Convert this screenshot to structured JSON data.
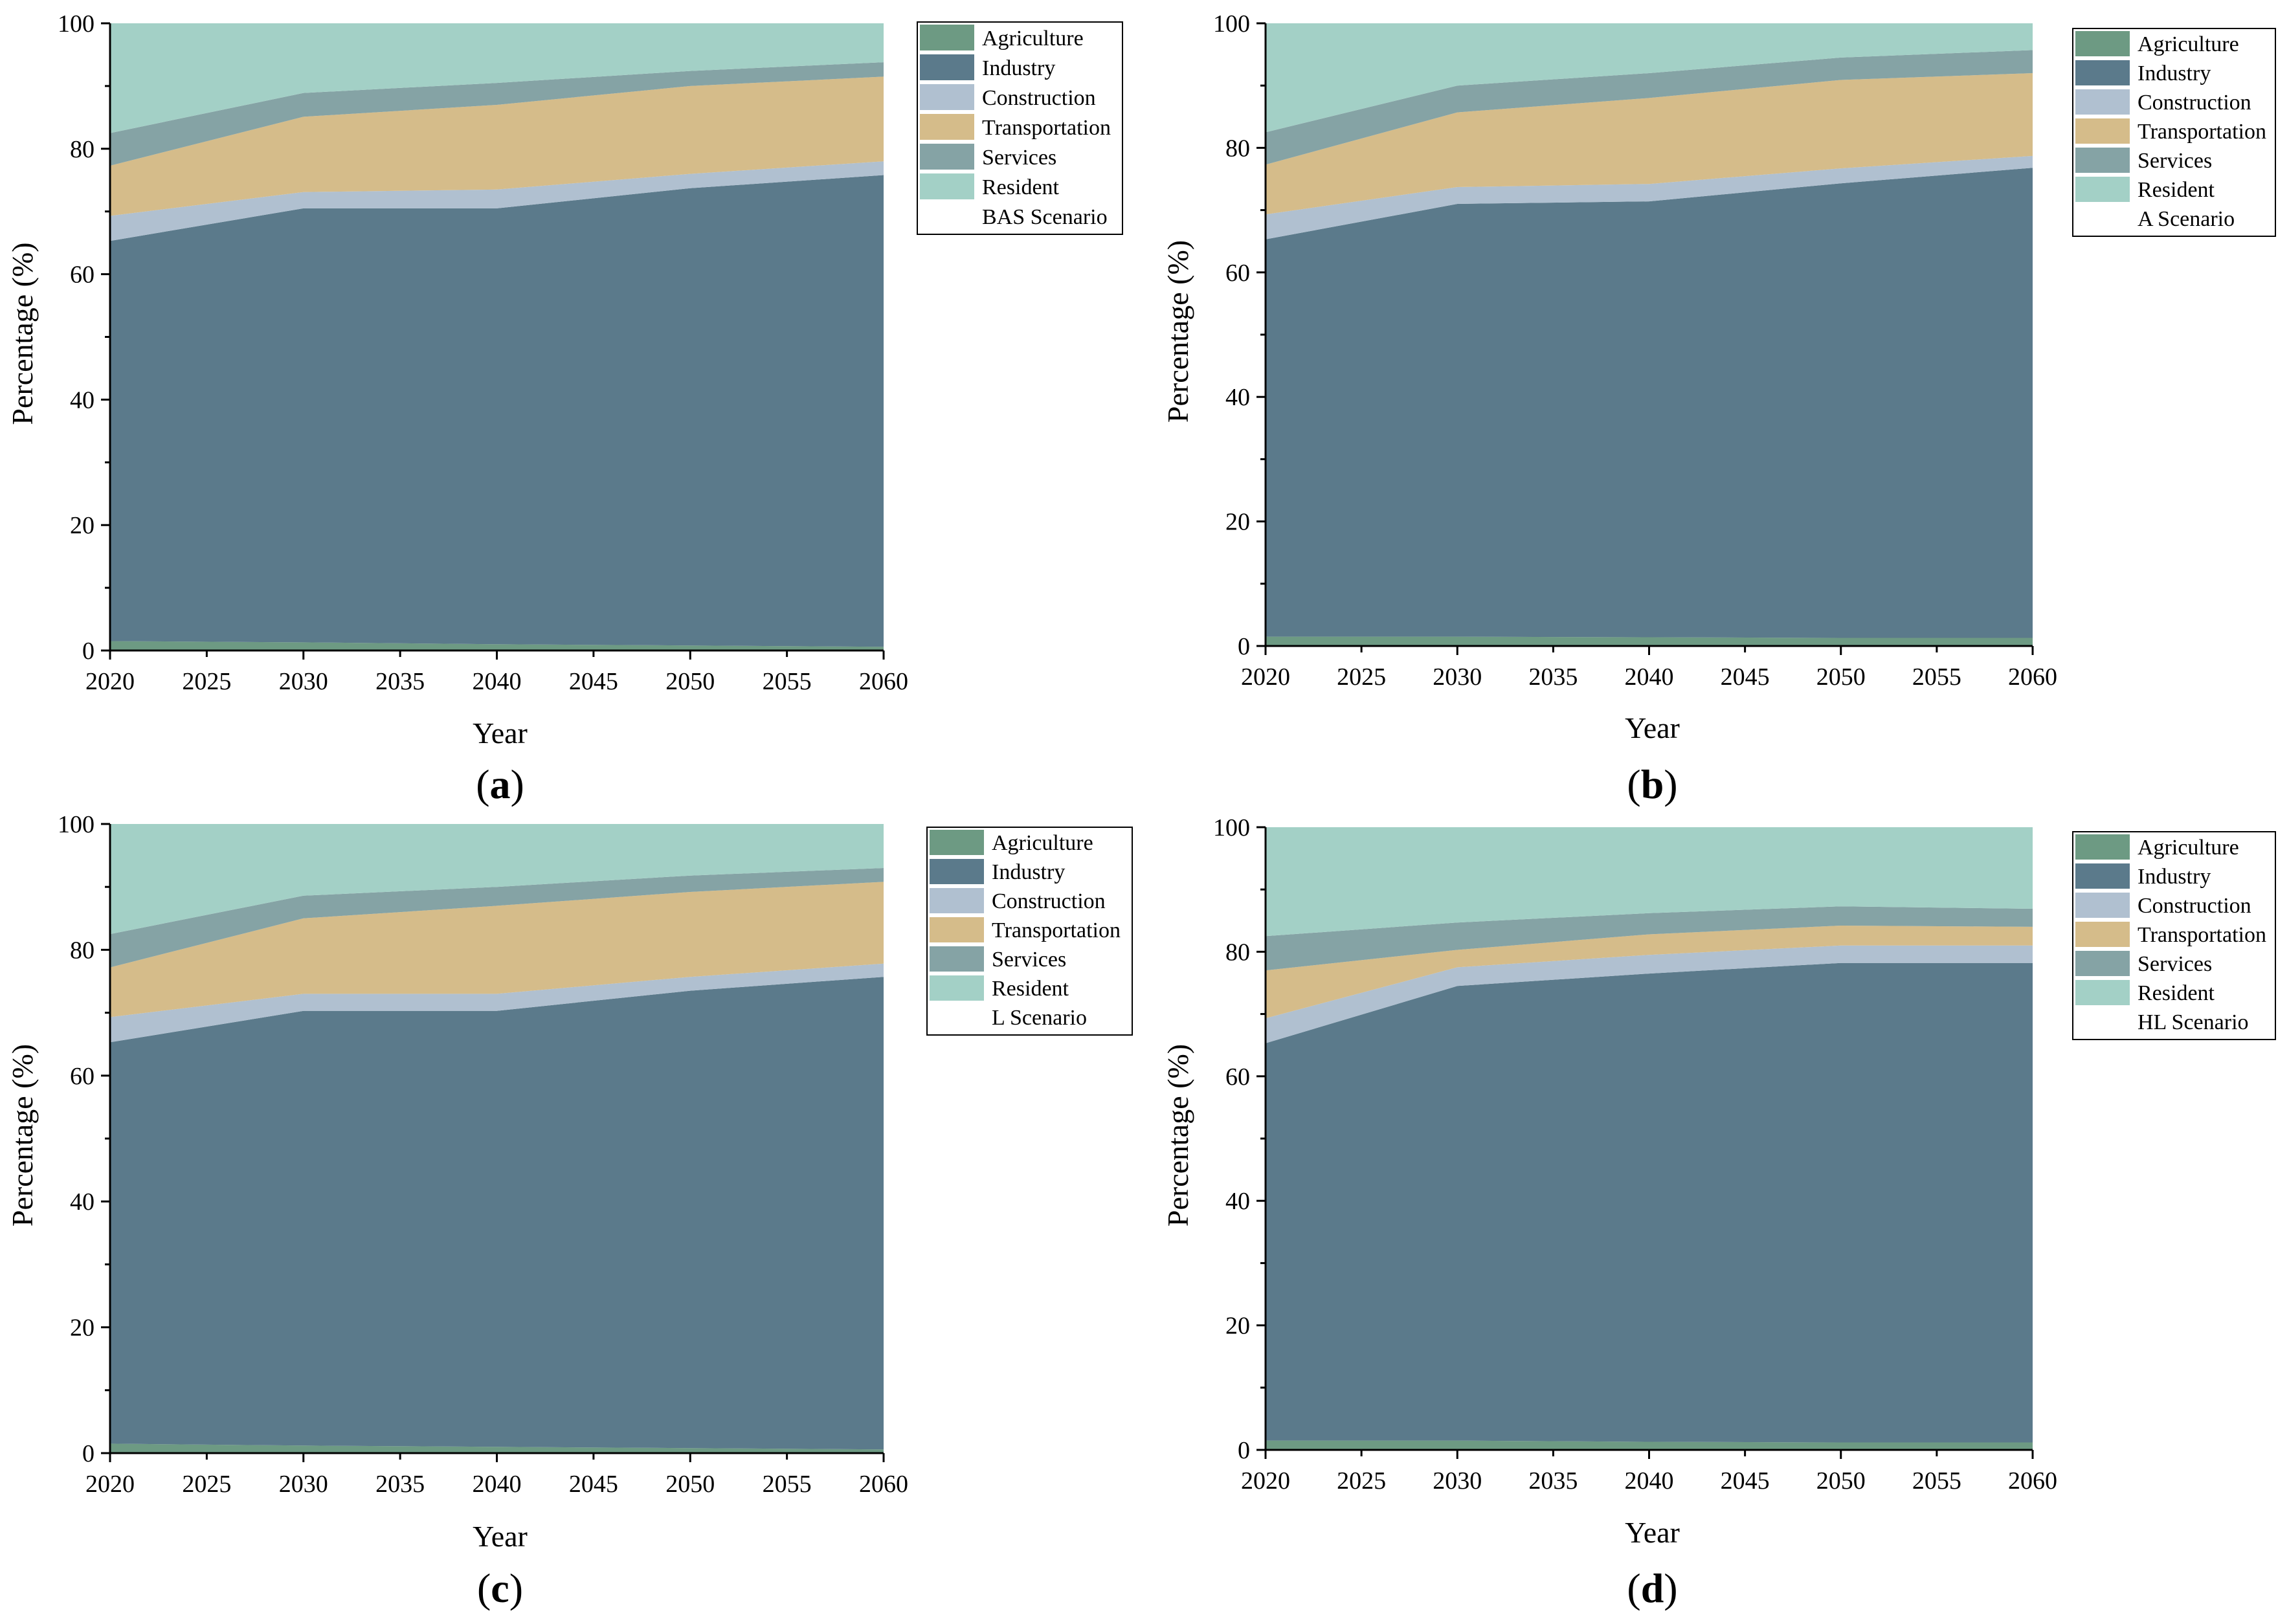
{
  "chart_data": [
    {
      "type": "area",
      "panel_label": "a",
      "scenario": "BAS Scenario",
      "xlabel": "Year",
      "ylabel": "Percentage (%)",
      "xlim": [
        2020,
        2060
      ],
      "ylim": [
        0,
        100
      ],
      "xticks": [
        2020,
        2025,
        2030,
        2035,
        2040,
        2045,
        2050,
        2055,
        2060
      ],
      "yticks": [
        0,
        20,
        40,
        60,
        80,
        100
      ],
      "x": [
        2020,
        2030,
        2040,
        2050,
        2060
      ],
      "stacking": "cumulative",
      "series": [
        {
          "name": "Agriculture",
          "values": [
            1.5,
            1.3,
            1.0,
            0.8,
            0.6
          ]
        },
        {
          "name": "Industry",
          "values": [
            63.8,
            69.2,
            69.5,
            72.9,
            75.2
          ]
        },
        {
          "name": "Construction",
          "values": [
            4.0,
            2.6,
            3.0,
            2.3,
            2.2
          ]
        },
        {
          "name": "Transportation",
          "values": [
            8.0,
            12.0,
            13.5,
            14.0,
            13.5
          ]
        },
        {
          "name": "Services",
          "values": [
            5.2,
            3.8,
            3.5,
            2.4,
            2.3
          ]
        },
        {
          "name": "Resident",
          "values": [
            17.5,
            11.1,
            9.5,
            7.6,
            6.2
          ]
        }
      ]
    },
    {
      "type": "area",
      "panel_label": "b",
      "scenario": "A Scenario",
      "xlabel": "Year",
      "ylabel": "Percentage (%)",
      "xlim": [
        2020,
        2060
      ],
      "ylim": [
        0,
        100
      ],
      "xticks": [
        2020,
        2025,
        2030,
        2035,
        2040,
        2045,
        2050,
        2055,
        2060
      ],
      "yticks": [
        0,
        20,
        40,
        60,
        80,
        100
      ],
      "x": [
        2020,
        2030,
        2040,
        2050,
        2060
      ],
      "stacking": "cumulative",
      "series": [
        {
          "name": "Agriculture",
          "values": [
            1.5,
            1.5,
            1.4,
            1.3,
            1.3
          ]
        },
        {
          "name": "Industry",
          "values": [
            63.8,
            69.5,
            70.0,
            73.0,
            75.5
          ]
        },
        {
          "name": "Construction",
          "values": [
            4.0,
            2.7,
            2.8,
            2.4,
            1.9
          ]
        },
        {
          "name": "Transportation",
          "values": [
            8.0,
            12.0,
            13.8,
            14.2,
            13.3
          ]
        },
        {
          "name": "Services",
          "values": [
            5.2,
            4.3,
            4.0,
            3.6,
            3.7
          ]
        },
        {
          "name": "Resident",
          "values": [
            17.5,
            10.0,
            8.0,
            5.5,
            4.3
          ]
        }
      ]
    },
    {
      "type": "area",
      "panel_label": "c",
      "scenario": "L Scenario",
      "xlabel": "Year",
      "ylabel": "Percentage (%)",
      "xlim": [
        2020,
        2060
      ],
      "ylim": [
        0,
        100
      ],
      "xticks": [
        2020,
        2025,
        2030,
        2035,
        2040,
        2045,
        2050,
        2055,
        2060
      ],
      "yticks": [
        0,
        20,
        40,
        60,
        80,
        100
      ],
      "x": [
        2020,
        2030,
        2040,
        2050,
        2060
      ],
      "stacking": "cumulative",
      "series": [
        {
          "name": "Agriculture",
          "values": [
            1.5,
            1.2,
            1.0,
            0.8,
            0.6
          ]
        },
        {
          "name": "Industry",
          "values": [
            63.8,
            69.1,
            69.3,
            72.7,
            75.1
          ]
        },
        {
          "name": "Construction",
          "values": [
            4.0,
            2.7,
            2.7,
            2.2,
            2.1
          ]
        },
        {
          "name": "Transportation",
          "values": [
            7.9,
            12.0,
            14.0,
            13.5,
            13.0
          ]
        },
        {
          "name": "Services",
          "values": [
            5.3,
            3.6,
            3.0,
            2.6,
            2.2
          ]
        },
        {
          "name": "Resident",
          "values": [
            17.5,
            11.4,
            10.0,
            8.2,
            7.0
          ]
        }
      ]
    },
    {
      "type": "area",
      "panel_label": "d",
      "scenario": "HL Scenario",
      "xlabel": "Year",
      "ylabel": "Percentage (%)",
      "xlim": [
        2020,
        2060
      ],
      "ylim": [
        0,
        100
      ],
      "xticks": [
        2020,
        2025,
        2030,
        2035,
        2040,
        2045,
        2050,
        2055,
        2060
      ],
      "yticks": [
        0,
        20,
        40,
        60,
        80,
        100
      ],
      "x": [
        2020,
        2030,
        2040,
        2050,
        2060
      ],
      "stacking": "cumulative",
      "series": [
        {
          "name": "Agriculture",
          "values": [
            1.5,
            1.5,
            1.3,
            1.2,
            1.2
          ]
        },
        {
          "name": "Industry",
          "values": [
            63.8,
            73.0,
            75.2,
            77.0,
            77.0
          ]
        },
        {
          "name": "Construction",
          "values": [
            4.0,
            3.0,
            3.0,
            2.8,
            2.8
          ]
        },
        {
          "name": "Transportation",
          "values": [
            7.7,
            2.8,
            3.3,
            3.2,
            3.0
          ]
        },
        {
          "name": "Services",
          "values": [
            5.5,
            4.4,
            3.4,
            3.1,
            2.9
          ]
        },
        {
          "name": "Resident",
          "values": [
            17.5,
            15.3,
            13.8,
            12.7,
            13.1
          ]
        }
      ]
    }
  ],
  "colors": {
    "Agriculture": "#6d9a83",
    "Industry": "#5b7a8b",
    "Construction": "#b0c0d0",
    "Transportation": "#d5bc8a",
    "Services": "#85a3a5",
    "Resident": "#a3d0c6"
  }
}
